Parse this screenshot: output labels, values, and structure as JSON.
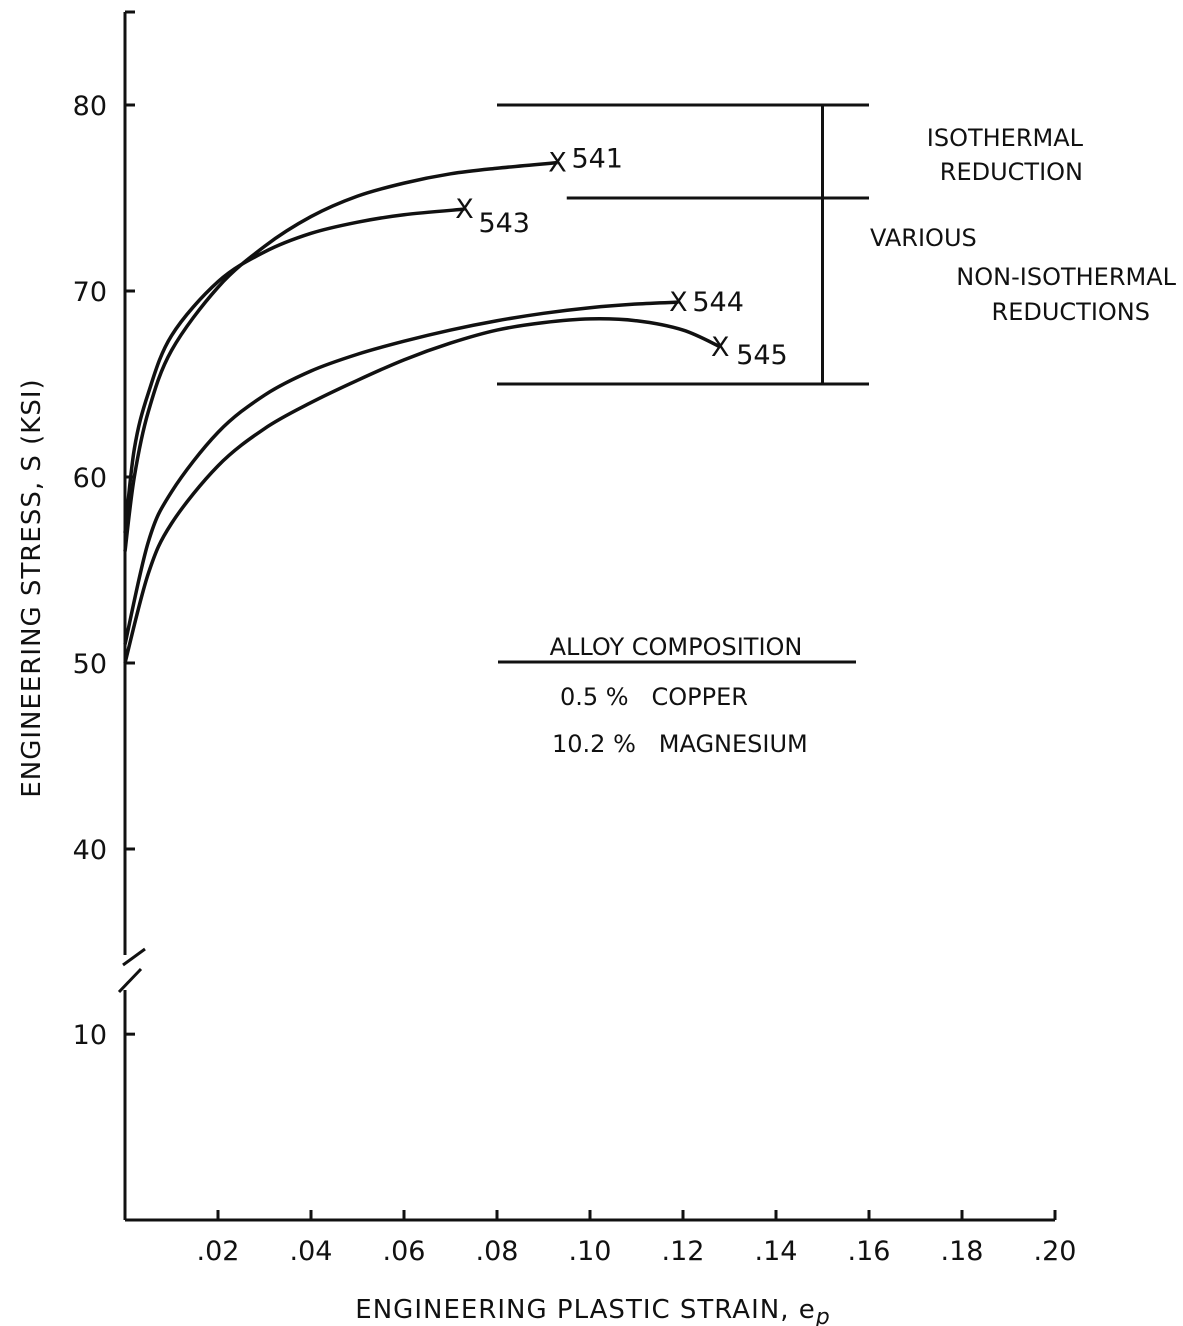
{
  "chart_data": {
    "type": "line",
    "title": "",
    "xlabel": "ENGINEERING PLASTIC STRAIN, e",
    "xlabel_subscript": "p",
    "ylabel": "ENGINEERING STRESS, S (KSI)",
    "xlim": [
      0,
      0.2
    ],
    "ylim_upper_segment": [
      35,
      85
    ],
    "ylim_lower_segment": [
      0,
      12
    ],
    "axis_break": true,
    "grid": false,
    "x_ticks": [
      0.02,
      0.04,
      0.06,
      0.08,
      0.1,
      0.12,
      0.14,
      0.16,
      0.18,
      0.2
    ],
    "x_tick_labels": [
      ".02",
      ".04",
      ".06",
      ".08",
      ".10",
      ".12",
      ".14",
      ".16",
      ".18",
      ".20"
    ],
    "y_ticks_upper": [
      40,
      50,
      60,
      70,
      80
    ],
    "y_tick_labels_upper": [
      "40",
      "50",
      "60",
      "70",
      "80"
    ],
    "y_ticks_lower": [
      10
    ],
    "y_tick_labels_lower": [
      "10"
    ],
    "series": [
      {
        "name": "541",
        "marker_end": "X",
        "points": [
          [
            0,
            56
          ],
          [
            0.002,
            60
          ],
          [
            0.005,
            63.5
          ],
          [
            0.01,
            66.8
          ],
          [
            0.02,
            70.2
          ],
          [
            0.03,
            72.4
          ],
          [
            0.04,
            74.0
          ],
          [
            0.05,
            75.1
          ],
          [
            0.06,
            75.8
          ],
          [
            0.07,
            76.3
          ],
          [
            0.08,
            76.6
          ],
          [
            0.093,
            76.9
          ]
        ]
      },
      {
        "name": "543",
        "marker_end": "X",
        "points": [
          [
            0,
            57
          ],
          [
            0.002,
            61.5
          ],
          [
            0.005,
            64.5
          ],
          [
            0.01,
            67.6
          ],
          [
            0.02,
            70.5
          ],
          [
            0.03,
            72.1
          ],
          [
            0.04,
            73.1
          ],
          [
            0.05,
            73.7
          ],
          [
            0.06,
            74.1
          ],
          [
            0.073,
            74.4
          ]
        ]
      },
      {
        "name": "544",
        "marker_end": "X",
        "points": [
          [
            0,
            51
          ],
          [
            0.005,
            56.5
          ],
          [
            0.01,
            59.2
          ],
          [
            0.02,
            62.4
          ],
          [
            0.03,
            64.4
          ],
          [
            0.04,
            65.7
          ],
          [
            0.05,
            66.6
          ],
          [
            0.06,
            67.3
          ],
          [
            0.07,
            67.9
          ],
          [
            0.08,
            68.4
          ],
          [
            0.09,
            68.8
          ],
          [
            0.1,
            69.1
          ],
          [
            0.11,
            69.3
          ],
          [
            0.119,
            69.4
          ]
        ]
      },
      {
        "name": "545",
        "marker_end": "X",
        "points": [
          [
            0,
            50
          ],
          [
            0.005,
            54.8
          ],
          [
            0.01,
            57.5
          ],
          [
            0.02,
            60.6
          ],
          [
            0.03,
            62.6
          ],
          [
            0.04,
            64.0
          ],
          [
            0.05,
            65.2
          ],
          [
            0.06,
            66.3
          ],
          [
            0.07,
            67.2
          ],
          [
            0.08,
            67.9
          ],
          [
            0.09,
            68.3
          ],
          [
            0.1,
            68.5
          ],
          [
            0.11,
            68.4
          ],
          [
            0.12,
            67.9
          ],
          [
            0.128,
            67.0
          ]
        ]
      }
    ],
    "reference_lines": [
      {
        "y": 80,
        "x_range": [
          0.08,
          0.16
        ]
      },
      {
        "y": 75,
        "x_range": [
          0.095,
          0.16
        ]
      },
      {
        "y": 65,
        "x_range": [
          0.08,
          0.16
        ]
      }
    ],
    "bracket": {
      "x": 0.15,
      "y_range": [
        65,
        80
      ]
    },
    "annotations": {
      "isothermal": [
        "ISOTHERMAL",
        "REDUCTION"
      ],
      "non_isothermal": [
        "VARIOUS",
        "NON-ISOTHERMAL",
        "REDUCTIONS"
      ],
      "composition_title": "ALLOY COMPOSITION",
      "composition_lines": [
        "0.5 %   COPPER",
        "10.2 %   MAGNESIUM"
      ]
    }
  }
}
